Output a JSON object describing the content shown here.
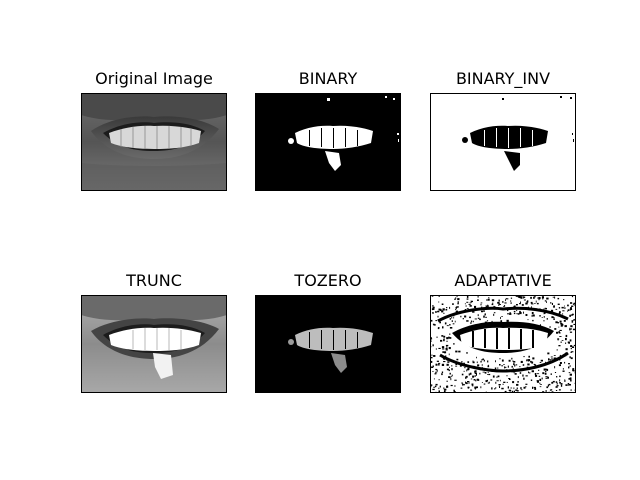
{
  "figure": {
    "panels": [
      {
        "title": "Original Image",
        "kind": "original"
      },
      {
        "title": "BINARY",
        "kind": "binary"
      },
      {
        "title": "BINARY_INV",
        "kind": "binary_inv"
      },
      {
        "title": "TRUNC",
        "kind": "trunc"
      },
      {
        "title": "TOZERO",
        "kind": "tozero"
      },
      {
        "title": "ADAPTATIVE",
        "kind": "adaptive"
      }
    ]
  }
}
